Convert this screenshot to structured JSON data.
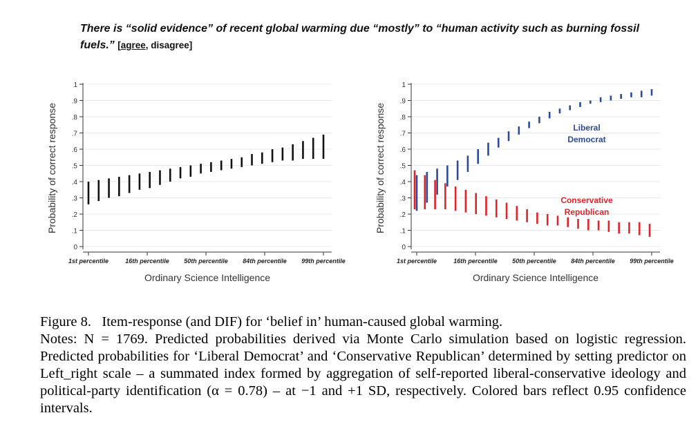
{
  "header": {
    "question": "There is “solid evidence” of recent global warming due “mostly” to “human activity such as burning fossil fuels.”",
    "options_open": "[",
    "answer": "agree",
    "options_rest": ", disagree]"
  },
  "caption": {
    "line1": "Figure 8.   Item-response (and DIF) for ‘belief in’ human-caused global warming.",
    "notes": "Notes: N = 1769. Predicted probabilities derived via Monte Carlo simulation based on logistic regression. Predicted probabilities for ‘Liberal Democrat’ and ‘Conservative Republican’ determined by setting predictor on Left_right scale – a summated index formed by aggregation of self-reported liberal-conservative ideology and political-party identification (α = 0.78) – at −1 and +1 SD, respectively. Colored bars reflect 0.95 confidence intervals."
  },
  "colors": {
    "overall": "#111111",
    "liberal": "#2d4a9a",
    "conservative": "#e0242a"
  },
  "chart_data": [
    {
      "type": "bar",
      "subtype": "interval",
      "ylabel": "Probability of correct response",
      "xlabel": "Ordinary Science Intelligence",
      "yticks": [
        "0",
        ".1",
        ".2",
        ".3",
        ".4",
        ".5",
        ".6",
        ".7",
        ".8",
        ".9",
        "1"
      ],
      "xticks": [
        "1st percentile",
        "16th percentile",
        "50th percentile",
        "84th percentile",
        "99th percentile"
      ],
      "ylim": [
        0,
        1
      ],
      "grid": true,
      "series": [
        {
          "key": "overall",
          "lows": [
            0.26,
            0.28,
            0.3,
            0.31,
            0.33,
            0.35,
            0.36,
            0.38,
            0.4,
            0.42,
            0.43,
            0.45,
            0.46,
            0.47,
            0.48,
            0.49,
            0.5,
            0.51,
            0.52,
            0.53,
            0.53,
            0.54,
            0.54,
            0.54
          ],
          "highs": [
            0.4,
            0.41,
            0.42,
            0.43,
            0.44,
            0.45,
            0.46,
            0.47,
            0.48,
            0.49,
            0.5,
            0.51,
            0.52,
            0.53,
            0.54,
            0.55,
            0.57,
            0.58,
            0.6,
            0.61,
            0.63,
            0.65,
            0.67,
            0.69
          ]
        }
      ]
    },
    {
      "type": "bar",
      "subtype": "interval",
      "ylabel": "Probability of correct response",
      "xlabel": "Ordinary Science Intelligence",
      "yticks": [
        "0",
        ".1",
        ".2",
        ".3",
        ".4",
        ".5",
        ".6",
        ".7",
        ".8",
        ".9",
        "1"
      ],
      "xticks": [
        "1st percentile",
        "16th percentile",
        "50th percentile",
        "84th percentile",
        "99th percentile"
      ],
      "ylim": [
        0,
        1
      ],
      "grid": true,
      "annotations": [
        {
          "text": "Liberal",
          "series": "liberal"
        },
        {
          "text": "Democrat",
          "series": "liberal"
        },
        {
          "text": "Conservative",
          "series": "conservative"
        },
        {
          "text": "Republican",
          "series": "conservative"
        }
      ],
      "series": [
        {
          "key": "liberal",
          "lows": [
            0.22,
            0.27,
            0.32,
            0.37,
            0.41,
            0.46,
            0.51,
            0.56,
            0.61,
            0.65,
            0.69,
            0.73,
            0.76,
            0.79,
            0.82,
            0.84,
            0.86,
            0.88,
            0.89,
            0.9,
            0.91,
            0.92,
            0.92,
            0.93
          ],
          "highs": [
            0.44,
            0.46,
            0.48,
            0.5,
            0.53,
            0.56,
            0.6,
            0.64,
            0.67,
            0.71,
            0.74,
            0.77,
            0.8,
            0.83,
            0.85,
            0.87,
            0.89,
            0.9,
            0.92,
            0.93,
            0.94,
            0.95,
            0.96,
            0.97
          ]
        },
        {
          "key": "conservative",
          "lows": [
            0.23,
            0.23,
            0.23,
            0.23,
            0.22,
            0.21,
            0.2,
            0.19,
            0.18,
            0.17,
            0.16,
            0.15,
            0.14,
            0.13,
            0.13,
            0.12,
            0.11,
            0.1,
            0.1,
            0.09,
            0.08,
            0.08,
            0.07,
            0.06
          ],
          "highs": [
            0.47,
            0.44,
            0.41,
            0.39,
            0.37,
            0.35,
            0.33,
            0.31,
            0.29,
            0.27,
            0.25,
            0.23,
            0.21,
            0.2,
            0.19,
            0.18,
            0.17,
            0.17,
            0.16,
            0.16,
            0.15,
            0.15,
            0.15,
            0.14
          ]
        }
      ]
    }
  ]
}
